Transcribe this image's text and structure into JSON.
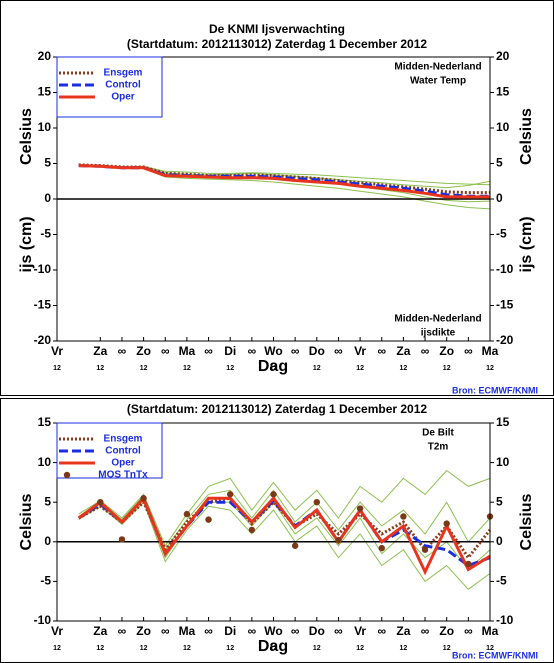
{
  "chart_data": [
    {
      "type": "line",
      "title": "De KNMI Ijsverwachting",
      "subtitle": "(Startdatum: 2012113012)   Zaterdag   1 December  2012",
      "ylabel": "Celsius",
      "ylabel2": "ijs (cm)",
      "xlabel": "Dag",
      "region_labels": [
        "Midden-Nederland",
        "Water Temp"
      ],
      "lower_labels": [
        "Midden-Nederland",
        "ijsdikte"
      ],
      "source": "Bron: ECMWF/KNMI",
      "xlim": [
        0,
        10
      ],
      "ylim": [
        -20,
        20
      ],
      "yticks": [
        -20,
        -15,
        -10,
        -5,
        0,
        5,
        10,
        15,
        20
      ],
      "xticks": [
        {
          "value": 0,
          "label": "Vr"
        },
        {
          "value": 1,
          "label": "Za"
        },
        {
          "value": 1.5,
          "label": "∞"
        },
        {
          "value": 2,
          "label": "Zo"
        },
        {
          "value": 2.5,
          "label": "∞"
        },
        {
          "value": 3,
          "label": "Ma"
        },
        {
          "value": 3.5,
          "label": "∞"
        },
        {
          "value": 4,
          "label": "Di"
        },
        {
          "value": 4.5,
          "label": "∞"
        },
        {
          "value": 5,
          "label": "Wo"
        },
        {
          "value": 5.5,
          "label": "∞"
        },
        {
          "value": 6,
          "label": "Do"
        },
        {
          "value": 6.5,
          "label": "∞"
        },
        {
          "value": 7,
          "label": "Vr"
        },
        {
          "value": 7.5,
          "label": "∞"
        },
        {
          "value": 8,
          "label": "Za"
        },
        {
          "value": 8.5,
          "label": "∞"
        },
        {
          "value": 9,
          "label": "Zo"
        },
        {
          "value": 9.5,
          "label": "∞"
        },
        {
          "value": 10,
          "label": "Ma"
        }
      ],
      "xsub_ticks": [
        {
          "value": 0,
          "label": "12"
        },
        {
          "value": 1,
          "label": "12"
        },
        {
          "value": 2,
          "label": "12"
        },
        {
          "value": 3,
          "label": "12"
        },
        {
          "value": 4,
          "label": "12"
        },
        {
          "value": 5,
          "label": "12"
        },
        {
          "value": 6,
          "label": "12"
        },
        {
          "value": 7,
          "label": "12"
        },
        {
          "value": 8,
          "label": "12"
        },
        {
          "value": 9,
          "label": "12"
        },
        {
          "value": 10,
          "label": "12"
        }
      ],
      "x": [
        0.5,
        1,
        1.5,
        2,
        2.5,
        3,
        3.5,
        4,
        4.5,
        5,
        5.5,
        6,
        6.5,
        7,
        7.5,
        8,
        8.5,
        9,
        9.5,
        10
      ],
      "members_color": "#8dc04f",
      "members": [
        [
          4.8,
          4.7,
          4.5,
          4.6,
          3.9,
          3.8,
          3.6,
          3.6,
          3.7,
          3.6,
          3.5,
          3.4,
          3.2,
          3.0,
          2.8,
          2.6,
          2.4,
          2.2,
          2.1,
          2.0
        ],
        [
          4.7,
          4.5,
          4.3,
          4.3,
          3.1,
          2.9,
          2.8,
          2.7,
          2.6,
          2.4,
          2.1,
          1.8,
          1.5,
          1.1,
          0.7,
          0.3,
          -0.3,
          -0.8,
          -1.2,
          -1.4
        ],
        [
          4.8,
          4.6,
          4.4,
          4.5,
          3.7,
          3.5,
          3.4,
          3.5,
          3.6,
          3.4,
          3.2,
          3.0,
          2.7,
          2.5,
          2.3,
          2.0,
          1.8,
          1.6,
          1.9,
          2.5
        ],
        [
          4.7,
          4.6,
          4.4,
          4.4,
          3.4,
          3.3,
          3.1,
          3.0,
          3.1,
          2.9,
          2.7,
          2.5,
          2.1,
          1.7,
          1.3,
          0.9,
          0.3,
          -0.2,
          -0.4,
          -0.3
        ]
      ],
      "series": [
        {
          "name": "Ensgem",
          "color": "#8b3a1a",
          "style": "dotted",
          "values": [
            4.8,
            4.7,
            4.5,
            4.5,
            3.6,
            3.5,
            3.3,
            3.3,
            3.4,
            3.3,
            3.1,
            2.9,
            2.6,
            2.3,
            2.0,
            1.7,
            1.4,
            1.0,
            0.9,
            0.9
          ]
        },
        {
          "name": "Control",
          "color": "#1a2ee0",
          "style": "dashed",
          "values": [
            4.7,
            4.6,
            4.4,
            4.4,
            3.4,
            3.3,
            3.2,
            3.2,
            3.2,
            3.1,
            2.9,
            2.7,
            2.4,
            2.1,
            1.8,
            1.5,
            1.1,
            0.6,
            0.4,
            0.4
          ]
        },
        {
          "name": "Oper",
          "color": "#e8341c",
          "style": "solid",
          "values": [
            4.7,
            4.6,
            4.4,
            4.4,
            3.3,
            3.2,
            3.1,
            3.0,
            3.0,
            2.9,
            2.6,
            2.4,
            2.2,
            1.8,
            1.5,
            1.2,
            0.8,
            0.3,
            0.3,
            0.3
          ]
        }
      ]
    },
    {
      "type": "line",
      "subtitle": "(Startdatum: 2012113012)   Zaterdag   1 December  2012",
      "ylabel": "Celsius",
      "xlabel": "Dag",
      "region_labels": [
        "De Bilt",
        "T2m"
      ],
      "source": "Bron: ECMWF/KNMI",
      "xlim": [
        0,
        10
      ],
      "ylim": [
        -10,
        15
      ],
      "yticks": [
        -10,
        -5,
        0,
        5,
        10,
        15
      ],
      "xticks": [
        {
          "value": 0,
          "label": "Vr"
        },
        {
          "value": 1,
          "label": "Za"
        },
        {
          "value": 1.5,
          "label": "∞"
        },
        {
          "value": 2,
          "label": "Zo"
        },
        {
          "value": 2.5,
          "label": "∞"
        },
        {
          "value": 3,
          "label": "Ma"
        },
        {
          "value": 3.5,
          "label": "∞"
        },
        {
          "value": 4,
          "label": "Di"
        },
        {
          "value": 4.5,
          "label": "∞"
        },
        {
          "value": 5,
          "label": "Wo"
        },
        {
          "value": 5.5,
          "label": "∞"
        },
        {
          "value": 6,
          "label": "Do"
        },
        {
          "value": 6.5,
          "label": "∞"
        },
        {
          "value": 7,
          "label": "Vr"
        },
        {
          "value": 7.5,
          "label": "∞"
        },
        {
          "value": 8,
          "label": "Za"
        },
        {
          "value": 8.5,
          "label": "∞"
        },
        {
          "value": 9,
          "label": "Zo"
        },
        {
          "value": 9.5,
          "label": "∞"
        },
        {
          "value": 10,
          "label": "Ma"
        }
      ],
      "xsub_ticks": [
        {
          "value": 0,
          "label": "12"
        },
        {
          "value": 1,
          "label": "12"
        },
        {
          "value": 2,
          "label": "12"
        },
        {
          "value": 3,
          "label": "12"
        },
        {
          "value": 4,
          "label": "12"
        },
        {
          "value": 5,
          "label": "12"
        },
        {
          "value": 6,
          "label": "12"
        },
        {
          "value": 7,
          "label": "12"
        },
        {
          "value": 8,
          "label": "12"
        },
        {
          "value": 9,
          "label": "12"
        },
        {
          "value": 10,
          "label": "12"
        }
      ],
      "x": [
        0.5,
        1,
        1.5,
        2,
        2.5,
        3,
        3.5,
        4,
        4.5,
        5,
        5.5,
        6,
        6.5,
        7,
        7.5,
        8,
        8.5,
        9,
        9.5,
        10
      ],
      "members_color": "#8dc04f",
      "members": [
        [
          3.5,
          5.2,
          3.0,
          6.0,
          -0.5,
          3.5,
          7.0,
          8.0,
          4.0,
          7.5,
          4.0,
          6.5,
          3.0,
          7.0,
          5.0,
          8.0,
          6.0,
          9.0,
          7.0,
          8.0
        ],
        [
          2.8,
          4.5,
          2.2,
          5.0,
          -2.5,
          1.5,
          4.5,
          4.0,
          1.0,
          4.0,
          0.0,
          2.0,
          -2.0,
          1.0,
          -3.0,
          -1.0,
          -5.0,
          -3.0,
          -6.0,
          -4.0
        ],
        [
          3.2,
          5.0,
          2.8,
          5.8,
          -1.0,
          2.8,
          6.0,
          6.5,
          3.0,
          6.5,
          2.5,
          5.0,
          1.5,
          5.0,
          2.0,
          4.0,
          1.0,
          5.0,
          0.0,
          3.0
        ],
        [
          3.0,
          4.8,
          2.5,
          5.5,
          -2.0,
          2.0,
          5.0,
          5.0,
          2.0,
          5.0,
          1.0,
          3.0,
          -0.5,
          3.0,
          -1.5,
          1.0,
          -2.0,
          0.0,
          -3.5,
          -1.0
        ]
      ],
      "series": [
        {
          "name": "Ensgem",
          "color": "#8b3a1a",
          "style": "dotted",
          "values": [
            3.0,
            4.5,
            2.5,
            5.0,
            -1.0,
            2.5,
            5.0,
            5.5,
            2.3,
            5.0,
            2.0,
            3.5,
            1.0,
            3.5,
            1.0,
            2.5,
            -1.0,
            2.0,
            -2.0,
            1.5
          ]
        },
        {
          "name": "Control",
          "color": "#1a2ee0",
          "style": "dashed",
          "values": [
            3.0,
            4.8,
            2.5,
            5.5,
            -1.5,
            2.0,
            5.0,
            5.0,
            2.5,
            5.2,
            2.0,
            4.0,
            0.0,
            4.0,
            0.0,
            1.5,
            -0.5,
            -1.0,
            -3.0,
            -2.0
          ]
        },
        {
          "name": "Oper",
          "color": "#e8341c",
          "style": "solid",
          "values": [
            3.0,
            5.0,
            2.5,
            5.5,
            -1.5,
            2.0,
            5.5,
            5.5,
            2.5,
            5.5,
            1.8,
            4.0,
            0.0,
            4.0,
            0.0,
            2.0,
            -3.8,
            2.0,
            -3.5,
            -1.8
          ]
        },
        {
          "name": "MOS TnTx",
          "color": "#7a3a1a",
          "style": "points",
          "x": [
            1,
            1.5,
            2,
            3,
            3.5,
            4,
            4.5,
            5,
            5.5,
            6,
            6.5,
            7,
            7.5,
            8,
            8.5,
            9,
            9.5,
            10
          ],
          "values": [
            5.0,
            0.3,
            5.5,
            3.5,
            2.8,
            6.0,
            1.5,
            6.0,
            -0.5,
            5.0,
            0.2,
            4.2,
            -0.8,
            3.2,
            -1.0,
            2.3,
            -2.8,
            3.2
          ]
        }
      ]
    }
  ]
}
